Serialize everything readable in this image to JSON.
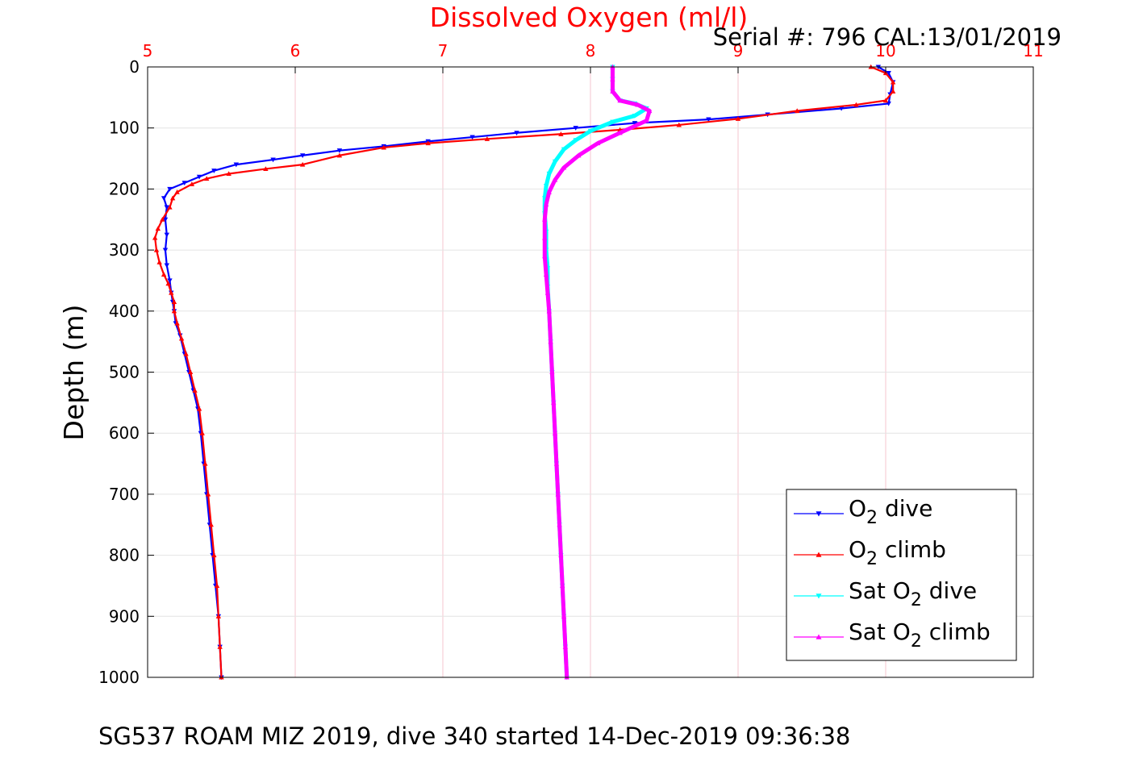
{
  "chart_data": {
    "type": "line",
    "title": "Dissolved Oxygen (ml/l)",
    "subtitle": "Serial #: 796  CAL:13/01/2019",
    "xlabel": "",
    "ylabel": "Depth (m)",
    "xlim": [
      5,
      11
    ],
    "ylim": [
      0,
      1000
    ],
    "y_reversed": true,
    "x_axis_position": "top",
    "x_ticks": [
      "5",
      "6",
      "7",
      "8",
      "9",
      "10",
      "11"
    ],
    "y_ticks": [
      "0",
      "100",
      "200",
      "300",
      "400",
      "500",
      "600",
      "700",
      "800",
      "900",
      "1000"
    ],
    "grid": true,
    "legend_position": "bottom-right",
    "colors": {
      "title": "#ff0000",
      "x_tick": "#ff0000",
      "grid": "#f5c6cf"
    },
    "series": [
      {
        "name": "O2 dive",
        "legend_main": "O",
        "legend_sub": "2",
        "legend_suffix": " dive",
        "color": "#0000ff",
        "marker": "triangle-down",
        "points": [
          [
            9.95,
            0
          ],
          [
            10.02,
            10
          ],
          [
            10.05,
            25
          ],
          [
            10.03,
            45
          ],
          [
            10.02,
            60
          ],
          [
            9.7,
            68
          ],
          [
            9.2,
            78
          ],
          [
            8.8,
            86
          ],
          [
            8.3,
            92
          ],
          [
            7.9,
            100
          ],
          [
            7.5,
            108
          ],
          [
            7.2,
            115
          ],
          [
            6.9,
            122
          ],
          [
            6.6,
            130
          ],
          [
            6.3,
            137
          ],
          [
            6.05,
            145
          ],
          [
            5.85,
            152
          ],
          [
            5.6,
            160
          ],
          [
            5.45,
            170
          ],
          [
            5.35,
            180
          ],
          [
            5.25,
            190
          ],
          [
            5.15,
            200
          ],
          [
            5.11,
            215
          ],
          [
            5.13,
            230
          ],
          [
            5.12,
            250
          ],
          [
            5.13,
            275
          ],
          [
            5.12,
            300
          ],
          [
            5.13,
            325
          ],
          [
            5.15,
            350
          ],
          [
            5.16,
            370
          ],
          [
            5.17,
            385
          ],
          [
            5.18,
            400
          ],
          [
            5.19,
            420
          ],
          [
            5.22,
            440
          ],
          [
            5.25,
            470
          ],
          [
            5.28,
            500
          ],
          [
            5.31,
            530
          ],
          [
            5.34,
            560
          ],
          [
            5.36,
            600
          ],
          [
            5.38,
            650
          ],
          [
            5.4,
            700
          ],
          [
            5.42,
            750
          ],
          [
            5.44,
            800
          ],
          [
            5.46,
            850
          ],
          [
            5.48,
            900
          ],
          [
            5.49,
            950
          ],
          [
            5.5,
            1000
          ]
        ]
      },
      {
        "name": "O2 climb",
        "legend_main": "O",
        "legend_sub": "2",
        "legend_suffix": " climb",
        "color": "#ff0000",
        "marker": "triangle-up",
        "points": [
          [
            9.9,
            0
          ],
          [
            10.0,
            10
          ],
          [
            10.05,
            25
          ],
          [
            10.05,
            40
          ],
          [
            10.0,
            55
          ],
          [
            9.8,
            62
          ],
          [
            9.4,
            72
          ],
          [
            9.0,
            85
          ],
          [
            8.6,
            95
          ],
          [
            8.2,
            103
          ],
          [
            7.8,
            110
          ],
          [
            7.3,
            118
          ],
          [
            6.9,
            125
          ],
          [
            6.6,
            132
          ],
          [
            6.3,
            145
          ],
          [
            6.05,
            160
          ],
          [
            5.8,
            167
          ],
          [
            5.55,
            175
          ],
          [
            5.4,
            183
          ],
          [
            5.3,
            192
          ],
          [
            5.2,
            205
          ],
          [
            5.17,
            215
          ],
          [
            5.15,
            230
          ],
          [
            5.1,
            250
          ],
          [
            5.07,
            265
          ],
          [
            5.05,
            280
          ],
          [
            5.06,
            300
          ],
          [
            5.08,
            320
          ],
          [
            5.11,
            340
          ],
          [
            5.14,
            355
          ],
          [
            5.16,
            370
          ],
          [
            5.18,
            385
          ],
          [
            5.18,
            400
          ],
          [
            5.2,
            420
          ],
          [
            5.23,
            445
          ],
          [
            5.26,
            470
          ],
          [
            5.29,
            500
          ],
          [
            5.32,
            530
          ],
          [
            5.35,
            560
          ],
          [
            5.37,
            600
          ],
          [
            5.39,
            650
          ],
          [
            5.41,
            700
          ],
          [
            5.43,
            750
          ],
          [
            5.45,
            800
          ],
          [
            5.47,
            850
          ],
          [
            5.48,
            900
          ],
          [
            5.49,
            950
          ],
          [
            5.5,
            1000
          ]
        ]
      },
      {
        "name": "Sat O2 dive",
        "legend_main": "Sat O",
        "legend_sub": "2",
        "legend_suffix": " dive",
        "color": "#00ffff",
        "marker": "triangle-down",
        "points": [
          [
            8.15,
            0
          ],
          [
            8.15,
            20
          ],
          [
            8.15,
            40
          ],
          [
            8.2,
            55
          ],
          [
            8.3,
            60
          ],
          [
            8.38,
            68
          ],
          [
            8.3,
            80
          ],
          [
            8.15,
            90
          ],
          [
            8.0,
            105
          ],
          [
            7.9,
            120
          ],
          [
            7.82,
            135
          ],
          [
            7.76,
            155
          ],
          [
            7.72,
            175
          ],
          [
            7.7,
            195
          ],
          [
            7.69,
            215
          ],
          [
            7.69,
            240
          ],
          [
            7.7,
            270
          ],
          [
            7.7,
            300
          ],
          [
            7.71,
            330
          ],
          [
            7.71,
            360
          ],
          [
            7.72,
            400
          ],
          [
            7.73,
            450
          ],
          [
            7.74,
            500
          ],
          [
            7.75,
            550
          ],
          [
            7.76,
            600
          ],
          [
            7.77,
            650
          ],
          [
            7.78,
            700
          ],
          [
            7.79,
            750
          ],
          [
            7.8,
            800
          ],
          [
            7.81,
            850
          ],
          [
            7.82,
            900
          ],
          [
            7.83,
            950
          ],
          [
            7.84,
            1000
          ]
        ]
      },
      {
        "name": "Sat O2 climb",
        "legend_main": "Sat O",
        "legend_sub": "2",
        "legend_suffix": " climb",
        "color": "#ff00ff",
        "marker": "triangle-up",
        "points": [
          [
            8.15,
            0
          ],
          [
            8.15,
            20
          ],
          [
            8.15,
            40
          ],
          [
            8.2,
            55
          ],
          [
            8.32,
            62
          ],
          [
            8.4,
            72
          ],
          [
            8.38,
            88
          ],
          [
            8.2,
            108
          ],
          [
            8.05,
            125
          ],
          [
            7.92,
            145
          ],
          [
            7.82,
            165
          ],
          [
            7.76,
            185
          ],
          [
            7.72,
            205
          ],
          [
            7.7,
            225
          ],
          [
            7.69,
            250
          ],
          [
            7.69,
            280
          ],
          [
            7.69,
            310
          ],
          [
            7.7,
            340
          ],
          [
            7.71,
            370
          ],
          [
            7.72,
            400
          ],
          [
            7.73,
            450
          ],
          [
            7.74,
            500
          ],
          [
            7.75,
            550
          ],
          [
            7.76,
            600
          ],
          [
            7.77,
            650
          ],
          [
            7.78,
            700
          ],
          [
            7.79,
            750
          ],
          [
            7.8,
            800
          ],
          [
            7.81,
            850
          ],
          [
            7.82,
            900
          ],
          [
            7.83,
            950
          ],
          [
            7.84,
            1000
          ]
        ]
      }
    ]
  },
  "footer": "SG537 ROAM MIZ 2019, dive 340 started 14-Dec-2019 09:36:38"
}
